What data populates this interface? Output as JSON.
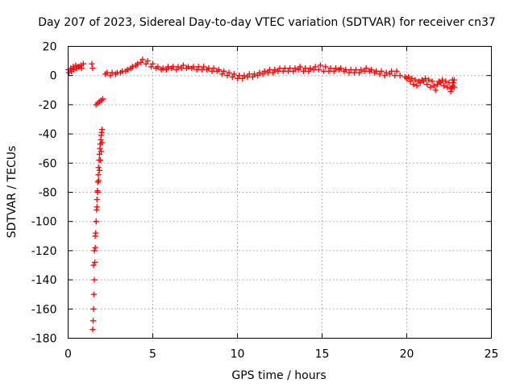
{
  "chart_data": {
    "type": "scatter",
    "title": "Day 207 of 2023, Sidereal Day-to-day VTEC variation (SDTVAR) for receiver cn37",
    "xlabel": "GPS time / hours",
    "ylabel": "SDTVAR / TECUs",
    "xlim": [
      0,
      25
    ],
    "ylim": [
      -180,
      20
    ],
    "x_ticks": [
      0,
      5,
      10,
      15,
      20,
      25
    ],
    "x_tick_labels": [
      "0",
      "5",
      "10",
      "15",
      "20",
      "25"
    ],
    "y_ticks": [
      20,
      0,
      -20,
      -40,
      -60,
      -80,
      -100,
      -120,
      -140,
      -160,
      -180
    ],
    "y_tick_labels": [
      "20",
      "0",
      "-20",
      "-40",
      "-60",
      "-80",
      "-100",
      "-120",
      "-140",
      "-160",
      "-180"
    ],
    "grid": true,
    "marker": "+",
    "color": "#ff0000",
    "series": [
      {
        "name": "cn37",
        "segments": [
          {
            "x": [
              0.0,
              0.15,
              0.3,
              0.45,
              0.6,
              0.75,
              0.9
            ],
            "y": [
              4,
              5,
              6,
              7,
              6,
              7,
              8
            ]
          },
          {
            "x": [
              0.05,
              0.2,
              0.35,
              0.5,
              0.65,
              0.8
            ],
            "y": [
              2,
              3,
              4,
              5,
              6,
              5
            ]
          },
          {
            "x": [
              1.4,
              1.45
            ],
            "y": [
              8,
              5
            ]
          },
          {
            "x": [
              1.65,
              1.75,
              1.85,
              1.95,
              2.05
            ],
            "y": [
              -20,
              -19,
              -18,
              -17,
              -16
            ]
          },
          {
            "x": [
              1.45,
              1.48,
              1.5,
              1.52,
              1.55,
              1.58,
              1.6,
              1.63,
              1.65,
              1.68,
              1.7,
              1.73,
              1.75,
              1.78,
              1.8,
              1.83,
              1.85,
              1.88,
              1.9,
              1.93,
              1.95,
              1.98,
              2.0
            ],
            "y": [
              -174,
              -168,
              -160,
              -150,
              -140,
              -128,
              -118,
              -108,
              -100,
              -92,
              -85,
              -79,
              -73,
              -68,
              -63,
              -58,
              -54,
              -50,
              -47,
              -44,
              -41,
              -39,
              -37
            ]
          },
          {
            "x": [
              1.5,
              1.55,
              1.6,
              1.65,
              1.7,
              1.75,
              1.8,
              1.85,
              1.9,
              1.95,
              2.0
            ],
            "y": [
              -130,
              -120,
              -110,
              -100,
              -90,
              -80,
              -72,
              -65,
              -58,
              -52,
              -46
            ]
          },
          {
            "x": [
              2.2,
              2.5,
              2.8,
              3.1,
              3.4,
              3.7,
              4.0,
              4.3,
              4.6,
              4.9,
              5.2,
              5.5,
              5.8,
              6.1,
              6.4,
              6.7,
              7.0,
              7.3,
              7.6,
              7.9,
              8.2,
              8.5,
              8.8,
              9.1,
              9.4,
              9.7,
              10.0,
              10.3,
              10.6,
              10.9,
              11.2,
              11.5,
              11.8,
              12.1,
              12.4,
              12.7,
              13.0,
              13.3,
              13.6,
              13.9,
              14.2,
              14.5,
              14.8,
              15.1,
              15.4,
              15.7,
              16.0,
              16.3,
              16.6,
              16.9,
              17.2,
              17.5,
              17.8,
              18.1,
              18.4,
              18.7,
              19.0,
              19.3,
              19.6,
              19.9
            ],
            "y": [
              1,
              0,
              1,
              2,
              3,
              5,
              7,
              9,
              8,
              6,
              5,
              4,
              4,
              5,
              4,
              5,
              5,
              5,
              4,
              4,
              4,
              3,
              3,
              1,
              0,
              -1,
              -2,
              -2,
              -1,
              -1,
              0,
              1,
              2,
              2,
              3,
              3,
              3,
              3,
              4,
              3,
              3,
              4,
              4,
              3,
              3,
              3,
              4,
              3,
              2,
              2,
              2,
              3,
              3,
              2,
              1,
              0,
              1,
              0,
              0,
              -1
            ]
          },
          {
            "x": [
              2.3,
              2.6,
              2.9,
              3.2,
              3.5,
              3.8,
              4.1,
              4.4,
              4.7,
              5.0,
              5.3,
              5.6,
              5.9,
              6.2,
              6.5,
              6.8,
              7.1,
              7.4,
              7.7,
              8.0,
              8.3,
              8.6,
              8.9,
              9.2,
              9.5,
              9.8,
              10.1,
              10.4,
              10.7,
              11.0,
              11.3,
              11.6,
              11.9,
              12.2,
              12.5,
              12.8,
              13.1,
              13.4,
              13.7,
              14.0,
              14.3,
              14.6,
              14.9,
              15.2,
              15.5,
              15.8,
              16.1,
              16.4,
              16.7,
              17.0,
              17.3,
              17.6,
              17.9,
              18.2,
              18.5,
              18.8,
              19.1,
              19.4
            ],
            "y": [
              2,
              2,
              2,
              3,
              4,
              6,
              8,
              11,
              10,
              8,
              6,
              5,
              6,
              6,
              6,
              7,
              6,
              6,
              6,
              6,
              5,
              5,
              4,
              3,
              2,
              1,
              0,
              0,
              1,
              1,
              2,
              3,
              4,
              4,
              5,
              5,
              5,
              5,
              6,
              5,
              5,
              6,
              7,
              6,
              5,
              5,
              5,
              4,
              4,
              4,
              4,
              5,
              4,
              3,
              3,
              2,
              3,
              3
            ]
          },
          {
            "x": [
              20.0,
              20.2,
              20.4,
              20.6,
              20.8,
              21.0,
              21.2,
              21.4,
              21.6,
              21.8,
              22.0,
              22.2,
              22.4,
              22.6,
              22.8
            ],
            "y": [
              -2,
              -4,
              -6,
              -7,
              -5,
              -4,
              -6,
              -8,
              -7,
              -6,
              -5,
              -7,
              -8,
              -9,
              -8
            ]
          },
          {
            "x": [
              20.1,
              20.3,
              20.5,
              20.7,
              20.9,
              21.1,
              21.3,
              21.5,
              21.7,
              21.9,
              22.1,
              22.3,
              22.5,
              22.7
            ],
            "y": [
              -1,
              -2,
              -3,
              -4,
              -3,
              -2,
              -3,
              -4,
              -10,
              -4,
              -3,
              -4,
              -5,
              -3
            ]
          },
          {
            "x": [
              22.6,
              22.65,
              22.7,
              22.75,
              22.8
            ],
            "y": [
              -11,
              -9,
              -7,
              -5,
              -3
            ]
          }
        ]
      }
    ]
  }
}
